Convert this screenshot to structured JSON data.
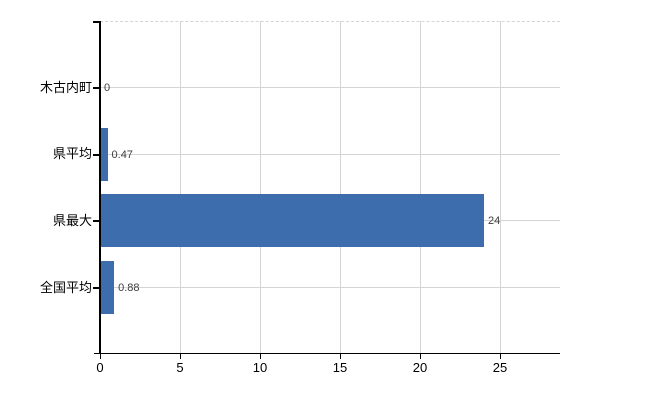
{
  "chart_data": {
    "type": "bar",
    "orientation": "horizontal",
    "title": "",
    "xlabel": "",
    "ylabel": "",
    "categories": [
      "木古内町",
      "県平均",
      "県最大",
      "全国平均"
    ],
    "values": [
      0,
      0.47,
      24,
      0.88
    ],
    "value_labels": [
      "0",
      "0.47",
      "24",
      "0.88"
    ],
    "x_ticks": [
      "0",
      "5",
      "10",
      "15",
      "20",
      "25"
    ],
    "x_tick_values": [
      0,
      5,
      10,
      15,
      20,
      25
    ],
    "xlim": [
      0,
      28.75
    ],
    "grid": true,
    "legend": null,
    "bar_color": "#3e6dae",
    "grid_color": "#d4d4d4",
    "axis_color": "#000000",
    "text_color": "#000000",
    "value_label_color": "#3d3d3d",
    "background_color": "#ffffff"
  }
}
